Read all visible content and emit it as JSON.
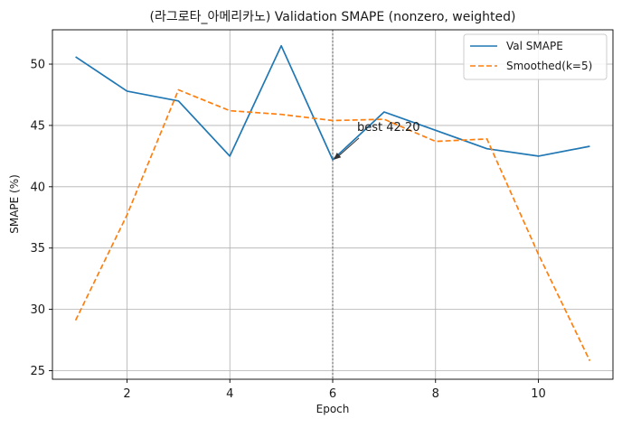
{
  "chart_data": {
    "type": "line",
    "title": "(라그로타_아메리카노) Validation SMAPE (nonzero, weighted)",
    "xlabel": "Epoch",
    "ylabel": "SMAPE (%)",
    "x": [
      1,
      2,
      3,
      4,
      5,
      6,
      7,
      8,
      9,
      10,
      11
    ],
    "xlim": [
      0.55,
      11.45
    ],
    "ylim": [
      24.3,
      52.8
    ],
    "xticks": [
      2,
      4,
      6,
      8,
      10
    ],
    "yticks": [
      25,
      30,
      35,
      40,
      45,
      50
    ],
    "grid": true,
    "legend_position": "top-right",
    "series": [
      {
        "name": "Val SMAPE",
        "color": "#1f77b4",
        "linestyle": "solid",
        "values": [
          50.6,
          47.8,
          47.0,
          42.5,
          51.5,
          42.2,
          46.1,
          44.6,
          43.1,
          42.5,
          43.3
        ]
      },
      {
        "name": "Smoothed(k=5)",
        "color": "#ff7f0e",
        "linestyle": "dashed",
        "values": [
          29.1,
          37.7,
          47.9,
          46.2,
          45.9,
          45.4,
          45.5,
          43.7,
          43.9,
          34.5,
          25.8
        ]
      }
    ],
    "vline": {
      "x": 6
    },
    "annotation": {
      "text": "best 42.20",
      "x": 6,
      "y": 42.2
    }
  }
}
